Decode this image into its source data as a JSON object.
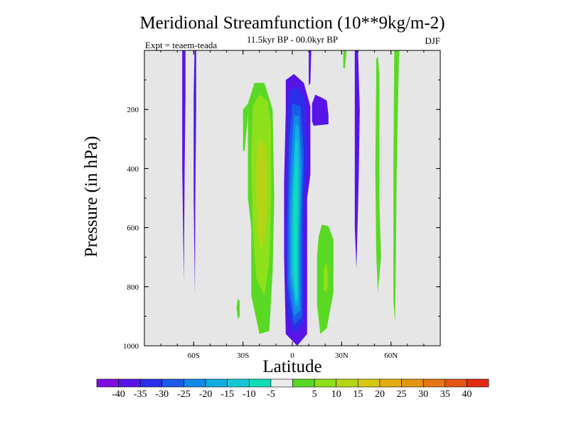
{
  "chart_data": {
    "type": "contour",
    "title": "Meridional Streamfunction (10**9kg/m-2)",
    "subtitle": "11.5kyr BP - 00.0kyr BP",
    "left_label": "Expt = teaem-teada",
    "right_label": "DJF",
    "xlabel": "Latitude",
    "ylabel": "Pressure (in hPa)",
    "xlim": [
      -90,
      90
    ],
    "ylim": [
      0,
      1000
    ],
    "y_inverted": true,
    "x_ticks": [
      {
        "value": -60,
        "label": "60S"
      },
      {
        "value": -30,
        "label": "30S"
      },
      {
        "value": 0,
        "label": "0"
      },
      {
        "value": 30,
        "label": "30N"
      },
      {
        "value": 60,
        "label": "60N"
      }
    ],
    "y_ticks": [
      {
        "value": 200,
        "label": "200"
      },
      {
        "value": 400,
        "label": "400"
      },
      {
        "value": 600,
        "label": "600"
      },
      {
        "value": 800,
        "label": "800"
      },
      {
        "value": 1000,
        "label": "1000"
      }
    ],
    "background_color": "#e6e6e6",
    "colorbar": {
      "colors": [
        "#7c0ee0",
        "#5814e6",
        "#2b2fe8",
        "#1a5ce8",
        "#1289e6",
        "#10aee0",
        "#14c8d6",
        "#12dcb5",
        "#ebebeb",
        "#5ad924",
        "#8ee01a",
        "#b5d416",
        "#d6c80f",
        "#e2ad10",
        "#e69414",
        "#e67614",
        "#e45414",
        "#e02a12"
      ],
      "labels": [
        "-40",
        "-35",
        "-30",
        "-25",
        "-20",
        "-15",
        "-10",
        "-5",
        "5",
        "10",
        "15",
        "20",
        "25",
        "30",
        "35",
        "40"
      ]
    },
    "features": [
      {
        "level": 1,
        "points": [
          [
            -67,
            0
          ],
          [
            -65,
            0
          ],
          [
            -65,
            150
          ],
          [
            -65.5,
            400
          ],
          [
            -66,
            780
          ],
          [
            -67,
            400
          ]
        ]
      },
      {
        "level": 1,
        "points": [
          [
            -59.5,
            0
          ],
          [
            -58.5,
            0
          ],
          [
            -58.5,
            200
          ],
          [
            -59,
            500
          ],
          [
            -59.3,
            830
          ],
          [
            -60,
            500
          ],
          [
            -60,
            150
          ]
        ]
      },
      {
        "level": 9,
        "points": [
          [
            -27,
            380
          ],
          [
            -27,
            180
          ],
          [
            -23,
            110
          ],
          [
            -17,
            110
          ],
          [
            -12,
            200
          ],
          [
            -11,
            500
          ],
          [
            -12,
            750
          ],
          [
            -14,
            950
          ],
          [
            -20,
            960
          ],
          [
            -25,
            830
          ],
          [
            -25,
            600
          ],
          [
            -27,
            500
          ]
        ]
      },
      {
        "level": 9,
        "points": [
          [
            -30,
            340
          ],
          [
            -30,
            200
          ],
          [
            -27,
            180
          ],
          [
            -27,
            220
          ],
          [
            -29,
            340
          ]
        ]
      },
      {
        "level": 9,
        "points": [
          [
            -33,
            840
          ],
          [
            -32,
            850
          ],
          [
            -32,
            900
          ],
          [
            -33,
            910
          ],
          [
            -34,
            870
          ]
        ]
      },
      {
        "level": 10,
        "points": [
          [
            -25,
            380
          ],
          [
            -24,
            190
          ],
          [
            -20,
            150
          ],
          [
            -15,
            170
          ],
          [
            -13,
            250
          ],
          [
            -13,
            520
          ],
          [
            -14,
            720
          ],
          [
            -17,
            830
          ],
          [
            -22,
            770
          ],
          [
            -24,
            600
          ]
        ]
      },
      {
        "level": 11,
        "points": [
          [
            -22,
            380
          ],
          [
            -20,
            300
          ],
          [
            -16,
            320
          ],
          [
            -15,
            450
          ],
          [
            -16,
            600
          ],
          [
            -19,
            680
          ],
          [
            -21,
            600
          ],
          [
            -22,
            480
          ]
        ]
      },
      {
        "level": 1,
        "points": [
          [
            -4,
            200
          ],
          [
            -4,
            100
          ],
          [
            1,
            80
          ],
          [
            7,
            110
          ],
          [
            11,
            190
          ],
          [
            11,
            420
          ],
          [
            9,
            500
          ],
          [
            9,
            750
          ],
          [
            9,
            960
          ],
          [
            3,
            1000
          ],
          [
            -4,
            960
          ],
          [
            -5,
            700
          ],
          [
            -5,
            450
          ]
        ]
      },
      {
        "level": 2,
        "points": [
          [
            -3,
            260
          ],
          [
            -2,
            140
          ],
          [
            3,
            120
          ],
          [
            8,
            170
          ],
          [
            9,
            380
          ],
          [
            7,
            500
          ],
          [
            7,
            920
          ],
          [
            2,
            960
          ],
          [
            -3,
            900
          ],
          [
            -4,
            650
          ]
        ]
      },
      {
        "level": 3,
        "points": [
          [
            -2,
            320
          ],
          [
            0,
            180
          ],
          [
            5,
            190
          ],
          [
            7,
            350
          ],
          [
            6,
            600
          ],
          [
            6,
            900
          ],
          [
            1,
            930
          ],
          [
            -3,
            800
          ],
          [
            -3,
            600
          ]
        ]
      },
      {
        "level": 4,
        "points": [
          [
            -1,
            380
          ],
          [
            1,
            220
          ],
          [
            4,
            220
          ],
          [
            6,
            380
          ],
          [
            5,
            620
          ],
          [
            5,
            880
          ],
          [
            1,
            900
          ],
          [
            -2,
            780
          ],
          [
            -2,
            560
          ]
        ]
      },
      {
        "level": 5,
        "points": [
          [
            0,
            430
          ],
          [
            2,
            250
          ],
          [
            4,
            260
          ],
          [
            5,
            420
          ],
          [
            4,
            640
          ],
          [
            4,
            860
          ],
          [
            2,
            870
          ],
          [
            -1,
            760
          ],
          [
            -1,
            580
          ]
        ]
      },
      {
        "level": 6,
        "points": [
          [
            0.5,
            470
          ],
          [
            2,
            300
          ],
          [
            3.5,
            320
          ],
          [
            4,
            480
          ],
          [
            3.5,
            660
          ],
          [
            3.5,
            840
          ],
          [
            2,
            850
          ],
          [
            0,
            740
          ],
          [
            0,
            600
          ]
        ]
      },
      {
        "level": 7,
        "points": [
          [
            1,
            510
          ],
          [
            2,
            380
          ],
          [
            3,
            400
          ],
          [
            3,
            560
          ],
          [
            3,
            700
          ],
          [
            3,
            810
          ],
          [
            2,
            820
          ],
          [
            1,
            720
          ]
        ]
      },
      {
        "level": 1,
        "points": [
          [
            12,
            240
          ],
          [
            12,
            180
          ],
          [
            14,
            150
          ],
          [
            18,
            160
          ],
          [
            21,
            170
          ],
          [
            22,
            220
          ],
          [
            22,
            250
          ],
          [
            13,
            255
          ]
        ]
      },
      {
        "level": 9,
        "points": [
          [
            16,
            630
          ],
          [
            18,
            590
          ],
          [
            22,
            595
          ],
          [
            25,
            640
          ],
          [
            25,
            820
          ],
          [
            21,
            940
          ],
          [
            17,
            960
          ],
          [
            15,
            860
          ],
          [
            15,
            700
          ]
        ]
      },
      {
        "level": 10,
        "points": [
          [
            19,
            740
          ],
          [
            21,
            720
          ],
          [
            22,
            780
          ],
          [
            21,
            820
          ],
          [
            19,
            810
          ]
        ]
      },
      {
        "level": 1,
        "points": [
          [
            38,
            180
          ],
          [
            38,
            0
          ],
          [
            40,
            0
          ],
          [
            41,
            200
          ],
          [
            40.5,
            400
          ],
          [
            40,
            530
          ],
          [
            39,
            740
          ],
          [
            38,
            600
          ]
        ]
      },
      {
        "level": 1,
        "points": [
          [
            10,
            0
          ],
          [
            11.5,
            0
          ],
          [
            11,
            110
          ],
          [
            10,
            120
          ]
        ]
      },
      {
        "level": 9,
        "points": [
          [
            31,
            0
          ],
          [
            33,
            0
          ],
          [
            32,
            60
          ],
          [
            31,
            60
          ]
        ]
      },
      {
        "level": 9,
        "points": [
          [
            51,
            30
          ],
          [
            52,
            20
          ],
          [
            53,
            80
          ],
          [
            53,
            520
          ],
          [
            54,
            700
          ],
          [
            52,
            820
          ],
          [
            51,
            680
          ],
          [
            50.5,
            400
          ],
          [
            51,
            100
          ]
        ]
      },
      {
        "level": 9,
        "points": [
          [
            62,
            0
          ],
          [
            65,
            0
          ],
          [
            64.5,
            120
          ],
          [
            63.5,
            400
          ],
          [
            63,
            700
          ],
          [
            62.5,
            920
          ],
          [
            61.5,
            850
          ],
          [
            61.5,
            400
          ]
        ]
      }
    ]
  }
}
